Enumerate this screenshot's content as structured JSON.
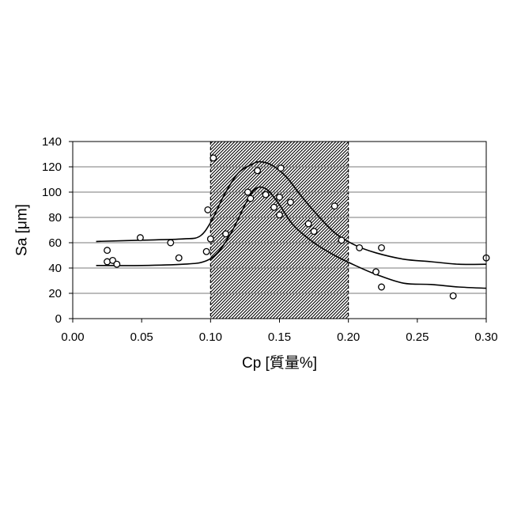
{
  "chart_data": {
    "type": "scatter",
    "title": "",
    "xlabel": "Cp [質量%]",
    "ylabel": "Sa [μm]",
    "xlim": [
      0.0,
      0.3
    ],
    "ylim": [
      0,
      140
    ],
    "xticks": [
      0.0,
      0.05,
      0.1,
      0.15,
      0.2,
      0.25,
      0.3
    ],
    "xtick_labels": [
      "0.00",
      "0.05",
      "0.10",
      "0.15",
      "0.20",
      "0.25",
      "0.30"
    ],
    "yticks": [
      0,
      20,
      40,
      60,
      80,
      100,
      120,
      140
    ],
    "ytick_labels": [
      "0",
      "20",
      "40",
      "60",
      "80",
      "100",
      "120",
      "140"
    ],
    "grid": "horizontal",
    "shaded_range_x": [
      0.1,
      0.2
    ],
    "series": [
      {
        "style": "markers",
        "points": [
          [
            0.025,
            54
          ],
          [
            0.025,
            45
          ],
          [
            0.029,
            46
          ],
          [
            0.032,
            43
          ],
          [
            0.049,
            64
          ],
          [
            0.071,
            60
          ],
          [
            0.077,
            48
          ],
          [
            0.097,
            53
          ],
          [
            0.098,
            86
          ],
          [
            0.1,
            63
          ],
          [
            0.102,
            127
          ],
          [
            0.111,
            67
          ],
          [
            0.127,
            100
          ],
          [
            0.129,
            95
          ],
          [
            0.134,
            117
          ],
          [
            0.14,
            98
          ],
          [
            0.146,
            88
          ],
          [
            0.15,
            96
          ],
          [
            0.15,
            82
          ],
          [
            0.151,
            119
          ],
          [
            0.158,
            92
          ],
          [
            0.171,
            75
          ],
          [
            0.175,
            69
          ],
          [
            0.19,
            89
          ],
          [
            0.195,
            62
          ],
          [
            0.208,
            56
          ],
          [
            0.22,
            37
          ],
          [
            0.224,
            56
          ],
          [
            0.224,
            25
          ],
          [
            0.276,
            18
          ],
          [
            0.3,
            48
          ]
        ]
      },
      {
        "style": "line",
        "points": [
          [
            0.017,
            61
          ],
          [
            0.05,
            62
          ],
          [
            0.08,
            63
          ],
          [
            0.092,
            65
          ],
          [
            0.1,
            76
          ],
          [
            0.11,
            98
          ],
          [
            0.12,
            115
          ],
          [
            0.13,
            122
          ],
          [
            0.136,
            124
          ],
          [
            0.145,
            121
          ],
          [
            0.155,
            112
          ],
          [
            0.165,
            98
          ],
          [
            0.175,
            85
          ],
          [
            0.19,
            68
          ],
          [
            0.205,
            58
          ],
          [
            0.22,
            52
          ],
          [
            0.24,
            47
          ],
          [
            0.26,
            45
          ],
          [
            0.28,
            43
          ],
          [
            0.3,
            43
          ]
        ]
      },
      {
        "style": "line",
        "points": [
          [
            0.017,
            42
          ],
          [
            0.05,
            42
          ],
          [
            0.08,
            43
          ],
          [
            0.095,
            45
          ],
          [
            0.105,
            52
          ],
          [
            0.115,
            68
          ],
          [
            0.125,
            90
          ],
          [
            0.131,
            101
          ],
          [
            0.136,
            104
          ],
          [
            0.142,
            101
          ],
          [
            0.15,
            90
          ],
          [
            0.16,
            74
          ],
          [
            0.175,
            60
          ],
          [
            0.19,
            50
          ],
          [
            0.205,
            42
          ],
          [
            0.22,
            35
          ],
          [
            0.24,
            28
          ],
          [
            0.26,
            27
          ],
          [
            0.28,
            25
          ],
          [
            0.3,
            24
          ]
        ]
      }
    ]
  }
}
